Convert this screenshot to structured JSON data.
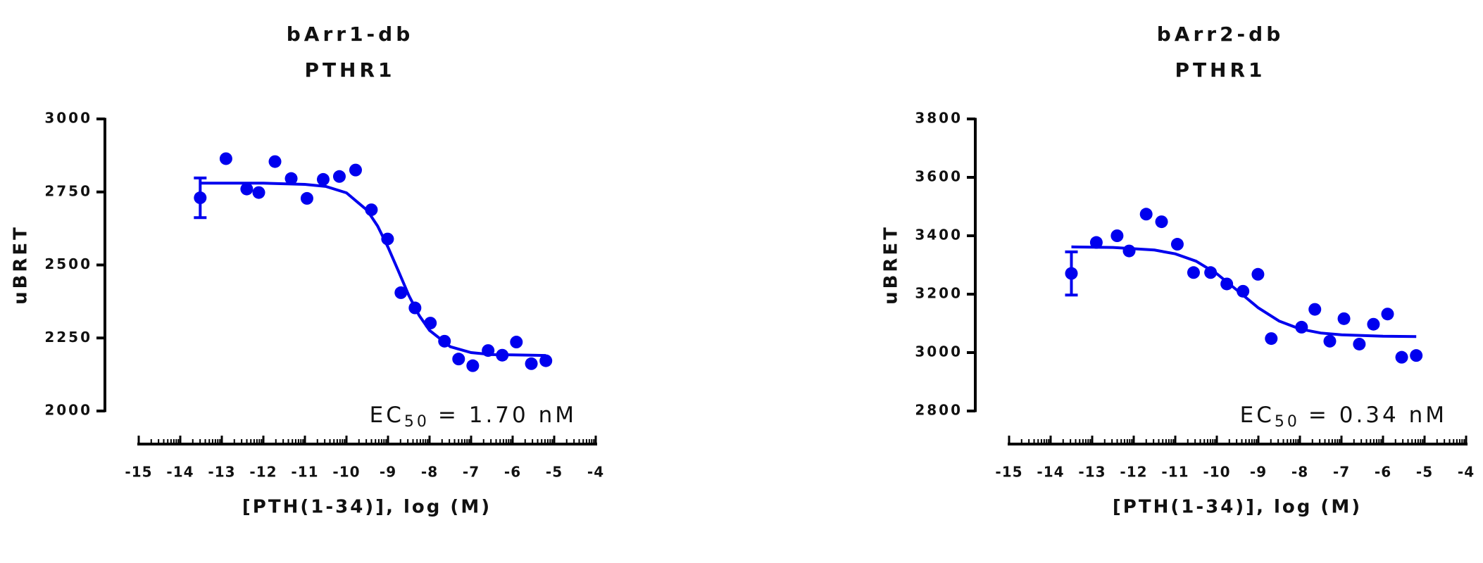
{
  "chart_data": [
    {
      "type": "scatter",
      "title": "bArr1-db",
      "subtitle": "PTHR1",
      "y_label": "uBRET",
      "x_label": "[PTH(1-34)], log (M)",
      "annotation": {
        "ec_label": "EC",
        "ec_sub": "50",
        "ec_value": "= 1.70 nM"
      },
      "color": "#0000ee",
      "xlim": [
        -15,
        -4
      ],
      "xticks": [
        -15,
        -14,
        -13,
        -12,
        -11,
        -10,
        -9,
        -8,
        -7,
        -6,
        -5,
        -4
      ],
      "ylim": [
        2000,
        3000
      ],
      "yticks": [
        2000,
        2250,
        2500,
        2750,
        3000
      ],
      "points": {
        "x": [
          -13.52,
          -12.9,
          -12.4,
          -12.11,
          -11.72,
          -11.33,
          -10.95,
          -10.56,
          -10.17,
          -9.78,
          -9.4,
          -9.01,
          -8.69,
          -8.35,
          -7.98,
          -7.64,
          -7.3,
          -6.96,
          -6.59,
          -6.25,
          -5.91,
          -5.55,
          -5.2
        ],
        "values": [
          2730,
          2864,
          2760,
          2748,
          2854,
          2796,
          2728,
          2793,
          2803,
          2825,
          2689,
          2589,
          2405,
          2353,
          2301,
          2239,
          2178,
          2155,
          2207,
          2191,
          2236,
          2162,
          2172
        ],
        "errors": [
          68,
          null,
          null,
          null,
          null,
          null,
          null,
          null,
          null,
          null,
          null,
          null,
          null,
          null,
          null,
          null,
          null,
          null,
          null,
          null,
          null,
          null,
          null
        ]
      },
      "fit": {
        "x": [
          -13.5,
          -12,
          -11,
          -10.5,
          -10,
          -9.5,
          -9.25,
          -9,
          -8.75,
          -8.5,
          -8.25,
          -8,
          -7.5,
          -7,
          -6.5,
          -6,
          -5.2
        ],
        "values": [
          2780,
          2780,
          2776,
          2769,
          2747,
          2687,
          2633,
          2561,
          2479,
          2396,
          2327,
          2276,
          2220,
          2200,
          2193,
          2192,
          2190
        ]
      }
    },
    {
      "type": "scatter",
      "title": "bArr2-db",
      "subtitle": "PTHR1",
      "y_label": "uBRET",
      "x_label": "[PTH(1-34)], log (M)",
      "annotation": {
        "ec_label": "EC",
        "ec_sub": "50",
        "ec_value": "= 0.34 nM"
      },
      "color": "#0000ee",
      "xlim": [
        -15,
        -4
      ],
      "xticks": [
        -15,
        -14,
        -13,
        -12,
        -11,
        -10,
        -9,
        -8,
        -7,
        -6,
        -5,
        -4
      ],
      "ylim": [
        2800,
        3800
      ],
      "yticks": [
        2800,
        3000,
        3200,
        3400,
        3600,
        3800
      ],
      "points": {
        "x": [
          -13.5,
          -12.9,
          -12.4,
          -12.11,
          -11.7,
          -11.33,
          -10.95,
          -10.56,
          -10.15,
          -9.76,
          -9.37,
          -9.01,
          -8.69,
          -7.96,
          -7.64,
          -7.28,
          -6.94,
          -6.57,
          -6.23,
          -5.89,
          -5.55,
          -5.2
        ],
        "values": [
          3271,
          3377,
          3400,
          3348,
          3474,
          3448,
          3371,
          3274,
          3274,
          3235,
          3210,
          3268,
          3048,
          3087,
          3148,
          3039,
          3116,
          3029,
          3097,
          3132,
          2984,
          2990
        ],
        "errors": [
          74,
          null,
          null,
          null,
          null,
          null,
          null,
          null,
          null,
          null,
          null,
          null,
          null,
          null,
          null,
          null,
          null,
          null,
          null,
          null,
          null,
          null
        ]
      },
      "fit": {
        "x": [
          -13.5,
          -12.5,
          -11.5,
          -11,
          -10.5,
          -10,
          -9.5,
          -9,
          -8.5,
          -8,
          -7.5,
          -7,
          -6,
          -5.2
        ],
        "values": [
          3362,
          3360,
          3351,
          3338,
          3313,
          3270,
          3212,
          3153,
          3108,
          3081,
          3067,
          3061,
          3056,
          3055
        ]
      }
    }
  ]
}
